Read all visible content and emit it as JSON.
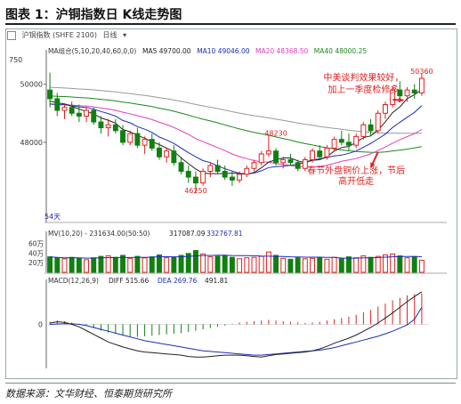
{
  "figure": {
    "title": "图表 1：沪铜指数日 K线走势图"
  },
  "toolbar": {
    "ticker": "沪铜指数 (SHFE 2100)",
    "period": "日线"
  },
  "source": "数据来源：文华财经、恒泰期货研究所",
  "colors": {
    "up": "#e02020",
    "down": "#108010",
    "ma5": "#222222",
    "ma10": "#1a2eb8",
    "ma20": "#e040c0",
    "ma40": "#1a8a1a",
    "ma60": "#999999",
    "diff": "#222222",
    "dea": "#1a2eb8",
    "vol_ma": "#1a2eb8"
  },
  "chart_data": [
    {
      "type": "candlestick",
      "name": "price",
      "legend": "MA组合(5,10,20,40,60,0,0)",
      "ma_values": [
        "MA5 49700.00",
        "MA10 49046.00",
        "MA20 48368.50",
        "MA40 48000.25"
      ],
      "ylim": [
        45300,
        51000
      ],
      "y_ticks": [
        48000,
        50000
      ],
      "top_left_label": "750",
      "bottom_left_label": "54天",
      "annotations": [
        {
          "text": "50360",
          "x": 51,
          "y": 50360
        },
        {
          "text": "48230",
          "x": 31,
          "y": 48230
        },
        {
          "text": "46250",
          "x": 20,
          "y": 46250
        },
        {
          "text": "中美谈判效果较好，",
          "x": 43,
          "y": 50120
        },
        {
          "text": "加上一季度检修多",
          "x": 43,
          "y": 49720
        },
        {
          "text": "春节外盘铜价上涨，节后",
          "x": 42,
          "y": 46930
        },
        {
          "text": "高开低走",
          "x": 42,
          "y": 46550
        }
      ],
      "ohlc": [
        [
          49800,
          50400,
          49200,
          49500
        ],
        [
          49500,
          49700,
          48900,
          49100
        ],
        [
          49100,
          49300,
          48800,
          49200
        ],
        [
          49200,
          49400,
          48900,
          49000
        ],
        [
          49000,
          49300,
          48700,
          48900
        ],
        [
          48900,
          49200,
          48700,
          49100
        ],
        [
          49100,
          49200,
          48600,
          48700
        ],
        [
          48700,
          48900,
          48300,
          48500
        ],
        [
          48500,
          48800,
          48200,
          48600
        ],
        [
          48600,
          48800,
          48300,
          48400
        ],
        [
          48400,
          48600,
          47900,
          48000
        ],
        [
          48000,
          48400,
          47900,
          48300
        ],
        [
          48300,
          48500,
          47800,
          47900
        ],
        [
          47900,
          48200,
          47600,
          48100
        ],
        [
          48100,
          48300,
          47700,
          47800
        ],
        [
          47800,
          48000,
          47400,
          47500
        ],
        [
          47500,
          47800,
          47300,
          47700
        ],
        [
          47700,
          47900,
          47200,
          47300
        ],
        [
          47300,
          47500,
          46900,
          47000
        ],
        [
          47000,
          47200,
          46600,
          46800
        ],
        [
          46800,
          47000,
          46250,
          46600
        ],
        [
          46600,
          47100,
          46500,
          47000
        ],
        [
          47000,
          47300,
          46800,
          47200
        ],
        [
          47200,
          47400,
          46900,
          47000
        ],
        [
          47000,
          47200,
          46700,
          46800
        ],
        [
          46800,
          47000,
          46500,
          46700
        ],
        [
          46700,
          47000,
          46600,
          46900
        ],
        [
          46900,
          47200,
          46800,
          47100
        ],
        [
          47100,
          47400,
          47000,
          47300
        ],
        [
          47300,
          47700,
          47200,
          47600
        ],
        [
          47600,
          48230,
          47500,
          47700
        ],
        [
          47700,
          47800,
          47200,
          47300
        ],
        [
          47300,
          47500,
          47100,
          47400
        ],
        [
          47400,
          47600,
          47200,
          47300
        ],
        [
          47300,
          47400,
          47000,
          47100
        ],
        [
          47100,
          47500,
          47000,
          47400
        ],
        [
          47400,
          47800,
          47300,
          47700
        ],
        [
          47700,
          47900,
          47400,
          47500
        ],
        [
          47500,
          47900,
          47400,
          47800
        ],
        [
          47800,
          48200,
          47700,
          48100
        ],
        [
          48100,
          48400,
          47900,
          48000
        ],
        [
          48000,
          48300,
          47700,
          47900
        ],
        [
          47900,
          48300,
          47800,
          48200
        ],
        [
          48200,
          48700,
          48100,
          48600
        ],
        [
          48600,
          48800,
          48200,
          48400
        ],
        [
          48400,
          49100,
          48300,
          49000
        ],
        [
          49000,
          49400,
          48800,
          49300
        ],
        [
          49300,
          49900,
          49200,
          49800
        ],
        [
          49800,
          50100,
          49500,
          49600
        ],
        [
          49600,
          49900,
          49400,
          49800
        ],
        [
          49800,
          50000,
          49500,
          49700
        ],
        [
          49700,
          50360,
          49600,
          50200
        ]
      ]
    },
    {
      "type": "bar",
      "name": "volume",
      "legend": "MV(10,20) - 231634.00(50:50)",
      "legend_extra": [
        "317087.09",
        "332767.81"
      ],
      "ylim": [
        0,
        700000
      ],
      "y_tick_labels": [
        "60万",
        "40万",
        "20万"
      ],
      "y_ticks": [
        600000,
        400000,
        200000
      ],
      "values": [
        320000,
        300000,
        280000,
        310000,
        290000,
        260000,
        300000,
        330000,
        340000,
        310000,
        350000,
        290000,
        330000,
        300000,
        320000,
        360000,
        300000,
        310000,
        350000,
        390000,
        450000,
        380000,
        320000,
        330000,
        350000,
        310000,
        280000,
        300000,
        310000,
        330000,
        420000,
        350000,
        290000,
        270000,
        300000,
        280000,
        290000,
        300000,
        270000,
        310000,
        290000,
        320000,
        300000,
        340000,
        310000,
        330000,
        360000,
        380000,
        340000,
        300000,
        320000,
        250000
      ]
    },
    {
      "type": "bar",
      "name": "macd",
      "legend": "MACD(12,26,9)",
      "legend_items": [
        "DIFF 515.66",
        "DEA 269.76",
        "491.81"
      ],
      "ylim": [
        -700,
        600
      ],
      "y_ticks": [
        0
      ],
      "values": [
        40,
        60,
        50,
        30,
        10,
        -20,
        -60,
        -100,
        -130,
        -150,
        -180,
        -190,
        -200,
        -190,
        -180,
        -170,
        -160,
        -150,
        -140,
        -120,
        -100,
        -80,
        -60,
        -40,
        -20,
        10,
        30,
        40,
        50,
        60,
        70,
        60,
        50,
        40,
        30,
        20,
        30,
        40,
        60,
        80,
        100,
        120,
        150,
        190,
        230,
        280,
        330,
        380,
        420,
        460,
        480,
        492
      ],
      "diff": [
        20,
        40,
        30,
        0,
        -40,
        -100,
        -160,
        -220,
        -280,
        -320,
        -360,
        -390,
        -420,
        -440,
        -450,
        -460,
        -470,
        -480,
        -490,
        -510,
        -520,
        -520,
        -510,
        -500,
        -490,
        -490,
        -490,
        -500,
        -510,
        -520,
        -500,
        -480,
        -470,
        -460,
        -450,
        -440,
        -420,
        -390,
        -350,
        -300,
        -260,
        -220,
        -170,
        -110,
        -50,
        20,
        100,
        180,
        270,
        360,
        440,
        516
      ],
      "dea": [
        0,
        5,
        10,
        8,
        0,
        -20,
        -50,
        -80,
        -110,
        -140,
        -170,
        -200,
        -230,
        -260,
        -280,
        -300,
        -320,
        -340,
        -360,
        -380,
        -400,
        -420,
        -430,
        -440,
        -450,
        -460,
        -470,
        -480,
        -490,
        -490,
        -480,
        -470,
        -460,
        -450,
        -440,
        -430,
        -420,
        -410,
        -390,
        -370,
        -340,
        -310,
        -280,
        -250,
        -220,
        -190,
        -150,
        -110,
        -60,
        -10,
        80,
        270
      ]
    }
  ]
}
